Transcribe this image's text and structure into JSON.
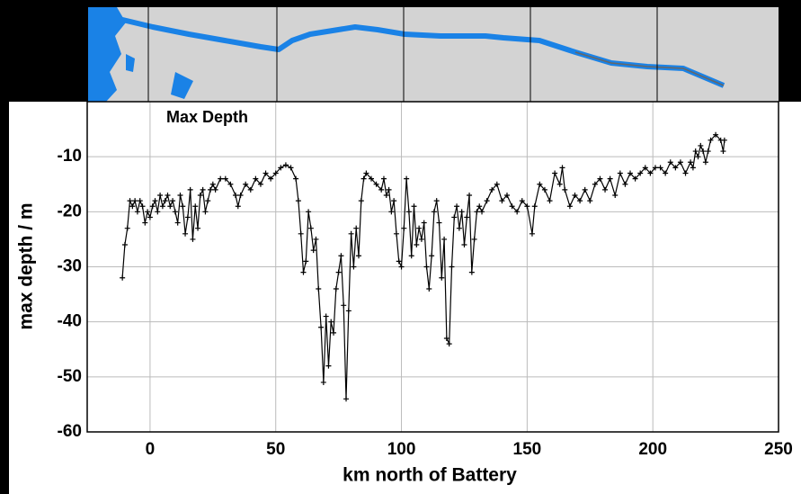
{
  "chart_data": {
    "type": "line",
    "title": "Max Depth",
    "xlabel": "km north of Battery",
    "ylabel": "max depth / m",
    "color": "#000000",
    "grid": true,
    "xlim": [
      -25,
      250
    ],
    "xticks": [
      0,
      50,
      100,
      150,
      200,
      250
    ],
    "ylim": [
      -60,
      0
    ],
    "yticks": [
      -60,
      -50,
      -40,
      -30,
      -20,
      -10
    ],
    "x": [
      -11,
      -10,
      -9,
      -8,
      -7,
      -6,
      -5,
      -4,
      -3,
      -2,
      -1,
      0,
      1,
      2,
      3,
      4,
      5,
      6,
      7,
      8,
      9,
      10,
      11,
      12,
      13,
      14,
      15,
      16,
      17,
      18,
      19,
      20,
      21,
      22,
      23,
      24,
      25,
      26,
      28,
      30,
      32,
      34,
      35,
      36,
      38,
      40,
      42,
      44,
      46,
      48,
      50,
      52,
      54,
      56,
      58,
      59,
      60,
      61,
      62,
      63,
      64,
      65,
      66,
      67,
      68,
      69,
      70,
      71,
      72,
      73,
      74,
      75,
      76,
      77,
      78,
      79,
      80,
      81,
      82,
      83,
      84,
      85,
      86,
      88,
      90,
      92,
      93,
      94,
      95,
      96,
      97,
      98,
      99,
      100,
      101,
      102,
      103,
      104,
      105,
      106,
      107,
      108,
      109,
      110,
      111,
      112,
      113,
      114,
      115,
      116,
      117,
      118,
      119,
      120,
      121,
      122,
      123,
      124,
      125,
      126,
      127,
      128,
      129,
      130,
      131,
      132,
      134,
      136,
      138,
      140,
      142,
      144,
      146,
      148,
      150,
      152,
      153,
      155,
      157,
      159,
      161,
      163,
      164,
      165,
      167,
      169,
      171,
      173,
      175,
      177,
      179,
      181,
      183,
      185,
      187,
      189,
      191,
      193,
      195,
      197,
      199,
      201,
      203,
      205,
      207,
      209,
      211,
      213,
      215,
      216,
      217,
      218,
      219,
      220,
      221,
      222,
      223,
      225,
      227,
      228,
      228.5
    ],
    "values": [
      -32,
      -26,
      -23,
      -18,
      -19,
      -18,
      -20,
      -18,
      -19,
      -22,
      -20,
      -21,
      -19,
      -18,
      -20,
      -17,
      -19,
      -18,
      -17,
      -19,
      -18,
      -20,
      -22,
      -17,
      -19,
      -24,
      -21,
      -16,
      -25,
      -19,
      -23,
      -17,
      -16,
      -20,
      -18,
      -16,
      -15,
      -16,
      -14,
      -14,
      -15,
      -17,
      -19,
      -17,
      -15,
      -16,
      -14,
      -15,
      -13,
      -14,
      -13,
      -12,
      -11.5,
      -12,
      -14,
      -18,
      -24,
      -31,
      -29,
      -20,
      -23,
      -27,
      -25,
      -34,
      -41,
      -51,
      -39,
      -48,
      -40,
      -42,
      -34,
      -31,
      -28,
      -37,
      -54,
      -38,
      -24,
      -30,
      -23,
      -28,
      -18,
      -14,
      -13,
      -14,
      -15,
      -16,
      -14,
      -17,
      -16,
      -20,
      -18,
      -24,
      -29,
      -30,
      -23,
      -14,
      -20,
      -28,
      -19,
      -26,
      -23,
      -25,
      -22,
      -30,
      -34,
      -28,
      -20,
      -18,
      -22,
      -32,
      -25,
      -43,
      -44,
      -30,
      -21,
      -19,
      -23,
      -20,
      -26,
      -21,
      -17,
      -31,
      -25,
      -20,
      -19,
      -20,
      -18,
      -16,
      -15,
      -18,
      -17,
      -19,
      -20,
      -18,
      -19,
      -24,
      -19,
      -15,
      -16,
      -18,
      -13,
      -15,
      -12,
      -16,
      -19,
      -17,
      -18,
      -16,
      -18,
      -15,
      -14,
      -16,
      -14,
      -17,
      -13,
      -15,
      -13,
      -14,
      -13,
      -12,
      -13,
      -12,
      -12,
      -13,
      -11,
      -12,
      -11,
      -13,
      -11,
      -12,
      -9,
      -10,
      -8,
      -9,
      -11,
      -9,
      -7,
      -6,
      -7,
      -9,
      -7
    ]
  }
}
